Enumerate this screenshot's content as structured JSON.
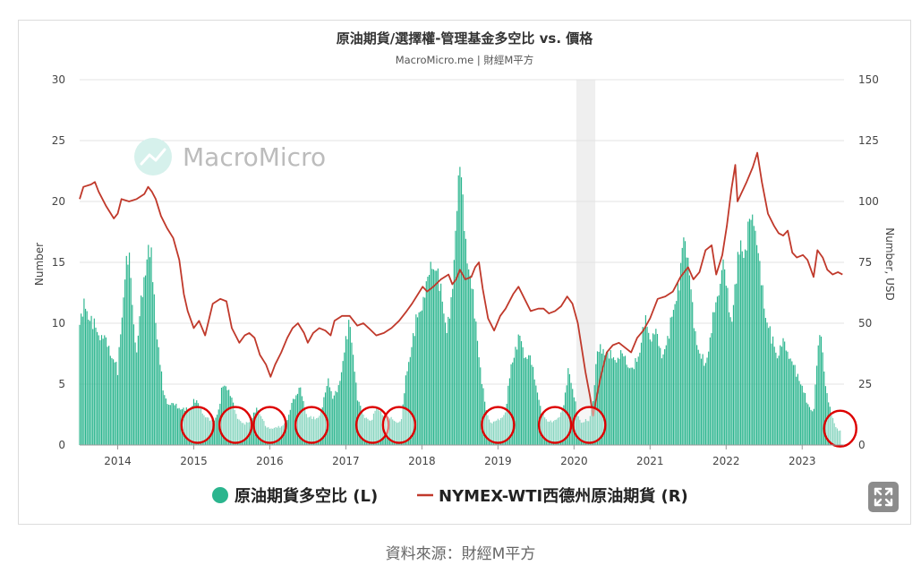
{
  "chart_data": {
    "type": "bar+line",
    "title": "原油期貨/選擇權-管理基金多空比 vs. 價格",
    "subtitle": "MacroMicro.me | 財經M平方",
    "watermark": "MacroMicro",
    "ylabel_left": "Number",
    "ylabel_right": "Number, USD",
    "ylim_left": [
      0,
      30
    ],
    "ylim_right": [
      0,
      150
    ],
    "yticks_left": [
      "0",
      "5",
      "10",
      "15",
      "20",
      "25",
      "30"
    ],
    "yticks_right": [
      "0",
      "25",
      "50",
      "75",
      "100",
      "125",
      "150"
    ],
    "xlim": [
      2013.55,
      2023.6
    ],
    "xticks": [
      "2014",
      "2015",
      "2016",
      "2017",
      "2018",
      "2019",
      "2020",
      "2021",
      "2022",
      "2023"
    ],
    "grid": true,
    "legend_position": "bottom",
    "shaded_period": [
      2020.08,
      2020.33
    ],
    "series": [
      {
        "name": "原油期貨多空比 (L)",
        "axis": "left",
        "type": "bar",
        "color": "#2bb58e",
        "points": [
          [
            2013.55,
            10.5
          ],
          [
            2013.62,
            12.5
          ],
          [
            2013.7,
            11.0
          ],
          [
            2013.78,
            10.0
          ],
          [
            2013.86,
            9.5
          ],
          [
            2013.94,
            8.5
          ],
          [
            2014.0,
            7.5
          ],
          [
            2014.05,
            6.5
          ],
          [
            2014.1,
            11.0
          ],
          [
            2014.15,
            15.5
          ],
          [
            2014.2,
            16.5
          ],
          [
            2014.25,
            12.0
          ],
          [
            2014.3,
            8.0
          ],
          [
            2014.35,
            12.0
          ],
          [
            2014.4,
            15.0
          ],
          [
            2014.45,
            17.5
          ],
          [
            2014.5,
            16.0
          ],
          [
            2014.55,
            11.0
          ],
          [
            2014.6,
            8.0
          ],
          [
            2014.65,
            4.5
          ],
          [
            2014.7,
            3.8
          ],
          [
            2014.8,
            3.5
          ],
          [
            2014.9,
            3.2
          ],
          [
            2015.0,
            3.0
          ],
          [
            2015.05,
            4.0
          ],
          [
            2015.12,
            3.5
          ],
          [
            2015.2,
            2.5
          ],
          [
            2015.3,
            2.0
          ],
          [
            2015.38,
            3.0
          ],
          [
            2015.42,
            5.0
          ],
          [
            2015.47,
            5.5
          ],
          [
            2015.55,
            4.0
          ],
          [
            2015.62,
            2.5
          ],
          [
            2015.7,
            1.8
          ],
          [
            2015.8,
            2.2
          ],
          [
            2015.88,
            3.2
          ],
          [
            2015.95,
            2.5
          ],
          [
            2016.0,
            1.5
          ],
          [
            2016.1,
            1.5
          ],
          [
            2016.2,
            1.6
          ],
          [
            2016.3,
            2.5
          ],
          [
            2016.35,
            4.0
          ],
          [
            2016.4,
            4.5
          ],
          [
            2016.45,
            5.0
          ],
          [
            2016.5,
            3.5
          ],
          [
            2016.55,
            2.5
          ],
          [
            2016.65,
            2.3
          ],
          [
            2016.72,
            2.8
          ],
          [
            2016.78,
            4.5
          ],
          [
            2016.82,
            6.0
          ],
          [
            2016.88,
            4.0
          ],
          [
            2016.95,
            5.0
          ],
          [
            2017.0,
            7.0
          ],
          [
            2017.05,
            9.0
          ],
          [
            2017.1,
            11.0
          ],
          [
            2017.15,
            8.0
          ],
          [
            2017.2,
            4.0
          ],
          [
            2017.3,
            2.5
          ],
          [
            2017.38,
            2.0
          ],
          [
            2017.45,
            3.5
          ],
          [
            2017.5,
            3.0
          ],
          [
            2017.55,
            2.5
          ],
          [
            2017.62,
            2.5
          ],
          [
            2017.7,
            2.0
          ],
          [
            2017.78,
            2.2
          ],
          [
            2017.85,
            6.5
          ],
          [
            2017.92,
            9.0
          ],
          [
            2017.98,
            11.0
          ],
          [
            2018.05,
            12.5
          ],
          [
            2018.12,
            14.0
          ],
          [
            2018.18,
            16.5
          ],
          [
            2018.25,
            15.0
          ],
          [
            2018.32,
            13.0
          ],
          [
            2018.38,
            10.0
          ],
          [
            2018.45,
            13.0
          ],
          [
            2018.5,
            21.0
          ],
          [
            2018.55,
            24.5
          ],
          [
            2018.6,
            20.0
          ],
          [
            2018.66,
            16.0
          ],
          [
            2018.72,
            13.0
          ],
          [
            2018.78,
            9.5
          ],
          [
            2018.84,
            5.5
          ],
          [
            2018.9,
            2.8
          ],
          [
            2018.96,
            2.0
          ],
          [
            2019.0,
            2.0
          ],
          [
            2019.05,
            2.2
          ],
          [
            2019.1,
            2.5
          ],
          [
            2019.15,
            2.8
          ],
          [
            2019.22,
            7.0
          ],
          [
            2019.28,
            8.5
          ],
          [
            2019.34,
            9.5
          ],
          [
            2019.4,
            8.0
          ],
          [
            2019.48,
            7.5
          ],
          [
            2019.55,
            5.5
          ],
          [
            2019.62,
            2.8
          ],
          [
            2019.7,
            2.2
          ],
          [
            2019.78,
            2.0
          ],
          [
            2019.85,
            2.5
          ],
          [
            2019.92,
            3.5
          ],
          [
            2019.98,
            7.0
          ],
          [
            2020.03,
            5.0
          ],
          [
            2020.1,
            2.5
          ],
          [
            2020.15,
            2.0
          ],
          [
            2020.2,
            2.2
          ],
          [
            2020.25,
            2.0
          ],
          [
            2020.3,
            4.0
          ],
          [
            2020.35,
            8.0
          ],
          [
            2020.42,
            8.5
          ],
          [
            2020.5,
            8.0
          ],
          [
            2020.58,
            7.5
          ],
          [
            2020.66,
            8.0
          ],
          [
            2020.74,
            7.5
          ],
          [
            2020.82,
            6.5
          ],
          [
            2020.9,
            8.0
          ],
          [
            2020.98,
            11.0
          ],
          [
            2021.05,
            9.5
          ],
          [
            2021.12,
            10.0
          ],
          [
            2021.2,
            8.0
          ],
          [
            2021.28,
            9.0
          ],
          [
            2021.36,
            12.5
          ],
          [
            2021.44,
            14.0
          ],
          [
            2021.5,
            19.5
          ],
          [
            2021.56,
            15.5
          ],
          [
            2021.62,
            11.0
          ],
          [
            2021.7,
            8.0
          ],
          [
            2021.78,
            7.0
          ],
          [
            2021.86,
            10.5
          ],
          [
            2021.94,
            13.0
          ],
          [
            2022.0,
            16.5
          ],
          [
            2022.06,
            13.5
          ],
          [
            2022.12,
            11.0
          ],
          [
            2022.18,
            14.5
          ],
          [
            2022.24,
            18.0
          ],
          [
            2022.3,
            17.0
          ],
          [
            2022.36,
            19.5
          ],
          [
            2022.42,
            20.5
          ],
          [
            2022.48,
            16.0
          ],
          [
            2022.56,
            12.0
          ],
          [
            2022.64,
            9.5
          ],
          [
            2022.72,
            8.0
          ],
          [
            2022.8,
            9.0
          ],
          [
            2022.88,
            8.0
          ],
          [
            2022.96,
            6.5
          ],
          [
            2023.04,
            5.5
          ],
          [
            2023.12,
            3.5
          ],
          [
            2023.2,
            3.0
          ],
          [
            2023.26,
            8.5
          ],
          [
            2023.3,
            10.0
          ],
          [
            2023.36,
            5.0
          ],
          [
            2023.42,
            3.0
          ],
          [
            2023.5,
            1.5
          ],
          [
            2023.55,
            1.2
          ]
        ]
      },
      {
        "name": "NYMEX-WTI西德州原油期貨 (R)",
        "axis": "right",
        "type": "line",
        "color": "#c0392b",
        "points": [
          [
            2013.55,
            101
          ],
          [
            2013.6,
            106
          ],
          [
            2013.7,
            107
          ],
          [
            2013.75,
            108
          ],
          [
            2013.8,
            104
          ],
          [
            2013.9,
            98
          ],
          [
            2014.0,
            93
          ],
          [
            2014.05,
            95
          ],
          [
            2014.1,
            101
          ],
          [
            2014.2,
            100
          ],
          [
            2014.3,
            101
          ],
          [
            2014.4,
            103
          ],
          [
            2014.45,
            106
          ],
          [
            2014.5,
            104
          ],
          [
            2014.55,
            101
          ],
          [
            2014.62,
            94
          ],
          [
            2014.7,
            89
          ],
          [
            2014.78,
            85
          ],
          [
            2014.86,
            76
          ],
          [
            2014.92,
            62
          ],
          [
            2014.97,
            55
          ],
          [
            2015.05,
            48
          ],
          [
            2015.12,
            51
          ],
          [
            2015.2,
            45
          ],
          [
            2015.3,
            58
          ],
          [
            2015.4,
            60
          ],
          [
            2015.48,
            59
          ],
          [
            2015.55,
            48
          ],
          [
            2015.65,
            42
          ],
          [
            2015.72,
            45
          ],
          [
            2015.78,
            46
          ],
          [
            2015.85,
            44
          ],
          [
            2015.92,
            37
          ],
          [
            2016.0,
            33
          ],
          [
            2016.06,
            28
          ],
          [
            2016.12,
            33
          ],
          [
            2016.2,
            38
          ],
          [
            2016.28,
            44
          ],
          [
            2016.35,
            48
          ],
          [
            2016.42,
            50
          ],
          [
            2016.5,
            46
          ],
          [
            2016.55,
            42
          ],
          [
            2016.62,
            46
          ],
          [
            2016.7,
            48
          ],
          [
            2016.78,
            47
          ],
          [
            2016.85,
            45
          ],
          [
            2016.9,
            51
          ],
          [
            2017.0,
            53
          ],
          [
            2017.1,
            53
          ],
          [
            2017.2,
            49
          ],
          [
            2017.28,
            50
          ],
          [
            2017.35,
            48
          ],
          [
            2017.45,
            45
          ],
          [
            2017.55,
            46
          ],
          [
            2017.65,
            48
          ],
          [
            2017.75,
            51
          ],
          [
            2017.85,
            55
          ],
          [
            2017.92,
            58
          ],
          [
            2018.0,
            62
          ],
          [
            2018.06,
            65
          ],
          [
            2018.12,
            63
          ],
          [
            2018.2,
            65
          ],
          [
            2018.3,
            68
          ],
          [
            2018.4,
            70
          ],
          [
            2018.45,
            66
          ],
          [
            2018.5,
            68
          ],
          [
            2018.55,
            72
          ],
          [
            2018.62,
            68
          ],
          [
            2018.7,
            69
          ],
          [
            2018.75,
            73
          ],
          [
            2018.8,
            75
          ],
          [
            2018.85,
            64
          ],
          [
            2018.92,
            52
          ],
          [
            2019.0,
            47
          ],
          [
            2019.08,
            53
          ],
          [
            2019.15,
            56
          ],
          [
            2019.25,
            62
          ],
          [
            2019.32,
            65
          ],
          [
            2019.4,
            60
          ],
          [
            2019.48,
            55
          ],
          [
            2019.58,
            56
          ],
          [
            2019.65,
            56
          ],
          [
            2019.72,
            54
          ],
          [
            2019.8,
            55
          ],
          [
            2019.88,
            57
          ],
          [
            2019.96,
            61
          ],
          [
            2020.03,
            58
          ],
          [
            2020.1,
            50
          ],
          [
            2020.2,
            30
          ],
          [
            2020.26,
            20
          ],
          [
            2020.3,
            12
          ],
          [
            2020.35,
            20
          ],
          [
            2020.4,
            28
          ],
          [
            2020.48,
            38
          ],
          [
            2020.56,
            41
          ],
          [
            2020.64,
            42
          ],
          [
            2020.72,
            40
          ],
          [
            2020.8,
            38
          ],
          [
            2020.88,
            44
          ],
          [
            2020.96,
            47
          ],
          [
            2021.05,
            52
          ],
          [
            2021.15,
            60
          ],
          [
            2021.25,
            61
          ],
          [
            2021.35,
            63
          ],
          [
            2021.45,
            69
          ],
          [
            2021.55,
            73
          ],
          [
            2021.62,
            68
          ],
          [
            2021.7,
            71
          ],
          [
            2021.78,
            80
          ],
          [
            2021.86,
            82
          ],
          [
            2021.92,
            70
          ],
          [
            2022.0,
            78
          ],
          [
            2022.06,
            90
          ],
          [
            2022.12,
            105
          ],
          [
            2022.17,
            115
          ],
          [
            2022.2,
            100
          ],
          [
            2022.26,
            104
          ],
          [
            2022.32,
            108
          ],
          [
            2022.4,
            114
          ],
          [
            2022.46,
            120
          ],
          [
            2022.52,
            108
          ],
          [
            2022.6,
            95
          ],
          [
            2022.68,
            90
          ],
          [
            2022.74,
            87
          ],
          [
            2022.8,
            86
          ],
          [
            2022.86,
            88
          ],
          [
            2022.92,
            79
          ],
          [
            2022.98,
            77
          ],
          [
            2023.06,
            78
          ],
          [
            2023.12,
            76
          ],
          [
            2023.2,
            69
          ],
          [
            2023.25,
            80
          ],
          [
            2023.32,
            77
          ],
          [
            2023.38,
            72
          ],
          [
            2023.45,
            70
          ],
          [
            2023.52,
            71
          ],
          [
            2023.58,
            70
          ]
        ]
      }
    ],
    "annotations": {
      "type": "circles",
      "color": "#dd0000",
      "circle_centers": [
        [
          2015.1,
          1.5
        ],
        [
          2015.6,
          1.5
        ],
        [
          2016.05,
          1.5
        ],
        [
          2016.6,
          1.5
        ],
        [
          2017.4,
          1.5
        ],
        [
          2017.75,
          1.5
        ],
        [
          2019.05,
          1.5
        ],
        [
          2019.8,
          1.5
        ],
        [
          2020.25,
          1.5
        ],
        [
          2023.55,
          1.2
        ]
      ]
    }
  },
  "legend": [
    {
      "label": "原油期貨多空比 (L)",
      "color": "#2bb58e"
    },
    {
      "label": "NYMEX-WTI西德州原油期貨 (R)",
      "color": "#c0392b"
    }
  ],
  "source": "資料來源：財經M平方",
  "expand_icon": "expand-icon"
}
